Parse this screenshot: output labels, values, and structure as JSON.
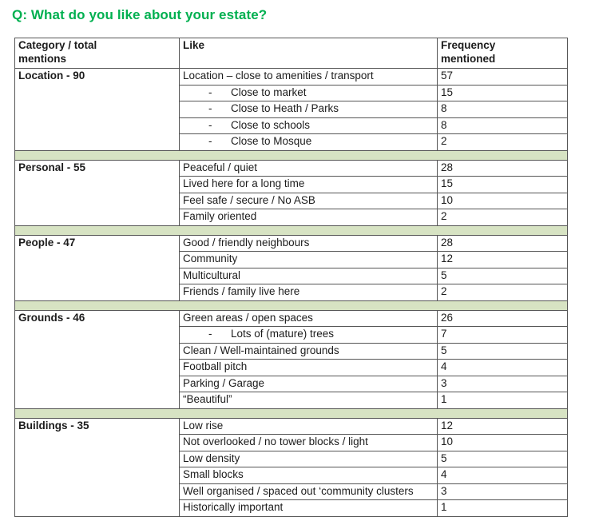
{
  "title": "Q: What do you like about your estate?",
  "colors": {
    "title_green": "#00B050",
    "separator_green": "#D7E3C3",
    "border": "#565656"
  },
  "table": {
    "sub_bullet": "-",
    "headers": [
      {
        "line1": "Category / total",
        "line2": "mentions"
      },
      {
        "line1": "Like",
        "line2": ""
      },
      {
        "line1": "Frequency",
        "line2": "mentioned"
      }
    ],
    "sections": [
      {
        "category": "Location - 90",
        "rows": [
          {
            "like": "Location – close to amenities / transport",
            "freq": 57,
            "sub": false
          },
          {
            "like": "Close to market",
            "freq": 15,
            "sub": true
          },
          {
            "like": "Close to Heath / Parks",
            "freq": 8,
            "sub": true
          },
          {
            "like": "Close to schools",
            "freq": 8,
            "sub": true
          },
          {
            "like": "Close to Mosque",
            "freq": 2,
            "sub": true
          }
        ]
      },
      {
        "category": "Personal - 55",
        "rows": [
          {
            "like": "Peaceful / quiet",
            "freq": 28,
            "sub": false
          },
          {
            "like": "Lived here for a long time",
            "freq": 15,
            "sub": false
          },
          {
            "like": "Feel safe / secure / No ASB",
            "freq": 10,
            "sub": false
          },
          {
            "like": "Family oriented",
            "freq": 2,
            "sub": false
          }
        ]
      },
      {
        "category": "People - 47",
        "rows": [
          {
            "like": "Good / friendly neighbours",
            "freq": 28,
            "sub": false
          },
          {
            "like": "Community",
            "freq": 12,
            "sub": false
          },
          {
            "like": "Multicultural",
            "freq": 5,
            "sub": false
          },
          {
            "like": "Friends / family live here",
            "freq": 2,
            "sub": false
          }
        ]
      },
      {
        "category": "Grounds - 46",
        "rows": [
          {
            "like": "Green areas / open spaces",
            "freq": 26,
            "sub": false
          },
          {
            "like": "Lots of (mature) trees",
            "freq": 7,
            "sub": true
          },
          {
            "like": "Clean / Well-maintained grounds",
            "freq": 5,
            "sub": false
          },
          {
            "like": "Football pitch",
            "freq": 4,
            "sub": false
          },
          {
            "like": "Parking / Garage",
            "freq": 3,
            "sub": false
          },
          {
            "like": "“Beautiful”",
            "freq": 1,
            "sub": false
          }
        ]
      },
      {
        "category": "Buildings - 35",
        "rows": [
          {
            "like": "Low rise",
            "freq": 12,
            "sub": false
          },
          {
            "like": "Not overlooked / no tower blocks / light",
            "freq": 10,
            "sub": false
          },
          {
            "like": "Low density",
            "freq": 5,
            "sub": false
          },
          {
            "like": "Small blocks",
            "freq": 4,
            "sub": false
          },
          {
            "like": "Well organised / spaced out ‘community clusters",
            "freq": 3,
            "sub": false
          },
          {
            "like": "Historically important",
            "freq": 1,
            "sub": false
          }
        ]
      }
    ]
  }
}
